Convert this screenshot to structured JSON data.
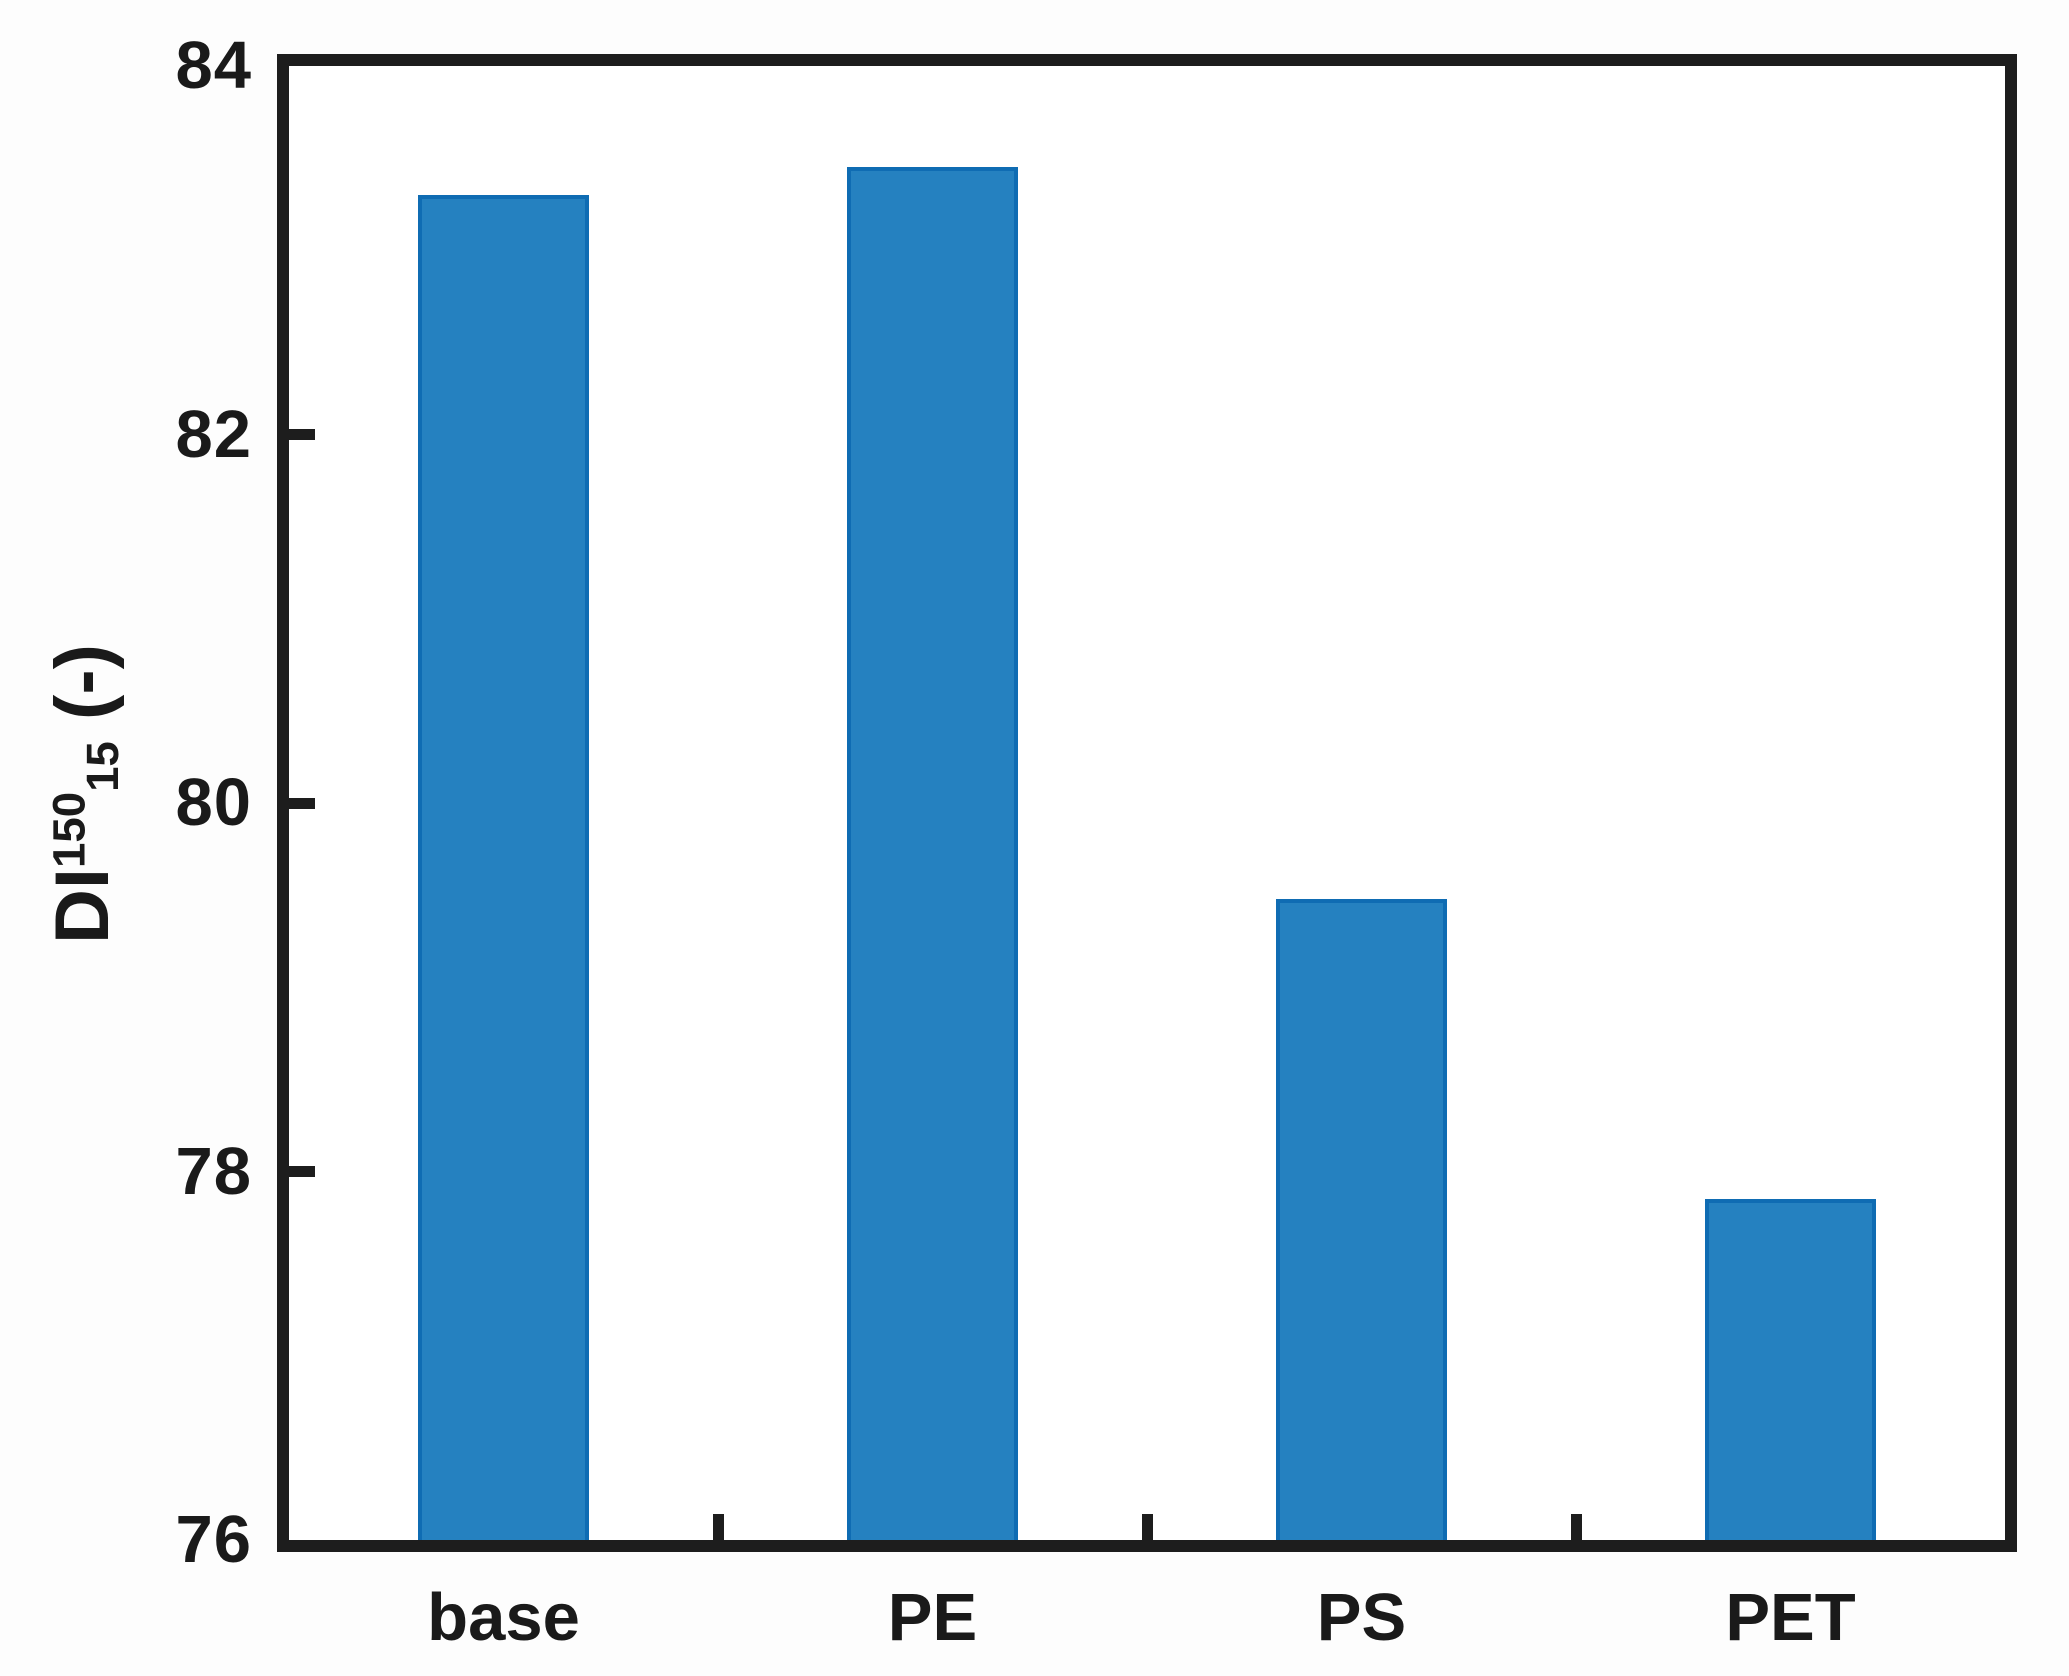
{
  "chart_data": {
    "type": "bar",
    "title": "",
    "xlabel": "",
    "ylabel": "DI¹⁵⁰₁₅ (-)",
    "ylabel_parts": {
      "base": "DI",
      "sup": "150",
      "sub": "15",
      "suffix": "(-)"
    },
    "categories": [
      "base",
      "PE",
      "PS",
      "PET"
    ],
    "values": [
      83.3,
      83.45,
      79.48,
      77.85
    ],
    "ylim": [
      76,
      84
    ],
    "yticks": [
      76,
      78,
      80,
      82,
      84
    ],
    "grid": false,
    "legend_position": "none",
    "bar_width_fraction": 0.4,
    "colors": {
      "bar_fill": "#2581c0",
      "bar_edge": "#0f6cb3",
      "axis_frame": "#1d1d1d",
      "text": "#1a1a1a",
      "plot_background": "#ffffff"
    }
  }
}
